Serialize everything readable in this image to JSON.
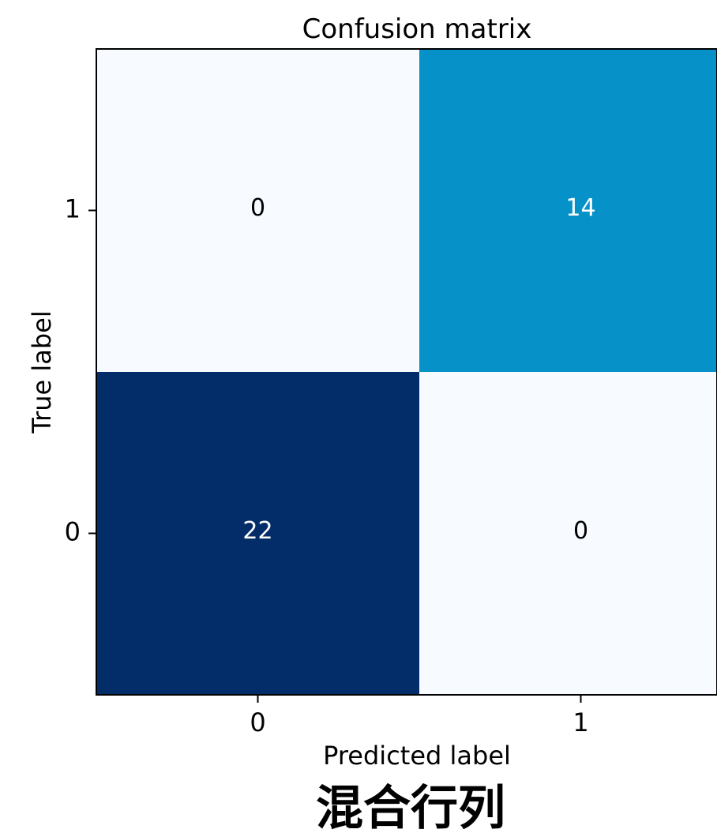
{
  "chart_data": {
    "type": "heatmap",
    "title": "Confusion matrix",
    "xlabel": "Predicted label",
    "ylabel": "True label",
    "x_categories": [
      "0",
      "1"
    ],
    "y_categories": [
      "1",
      "0"
    ],
    "cells": [
      {
        "true": "1",
        "pred": "0",
        "value": 0
      },
      {
        "true": "1",
        "pred": "1",
        "value": 14
      },
      {
        "true": "0",
        "pred": "0",
        "value": 22
      },
      {
        "true": "0",
        "pred": "1",
        "value": 0
      }
    ],
    "vmin": 0,
    "vmax": 22,
    "colormap": "Blues",
    "colors": {
      "low": "#f7fbff",
      "mid": "#0590c8",
      "high": "#032d68",
      "text_dark": "#000000",
      "text_light": "#ffffff"
    },
    "grid": false
  },
  "caption": "混合行列"
}
